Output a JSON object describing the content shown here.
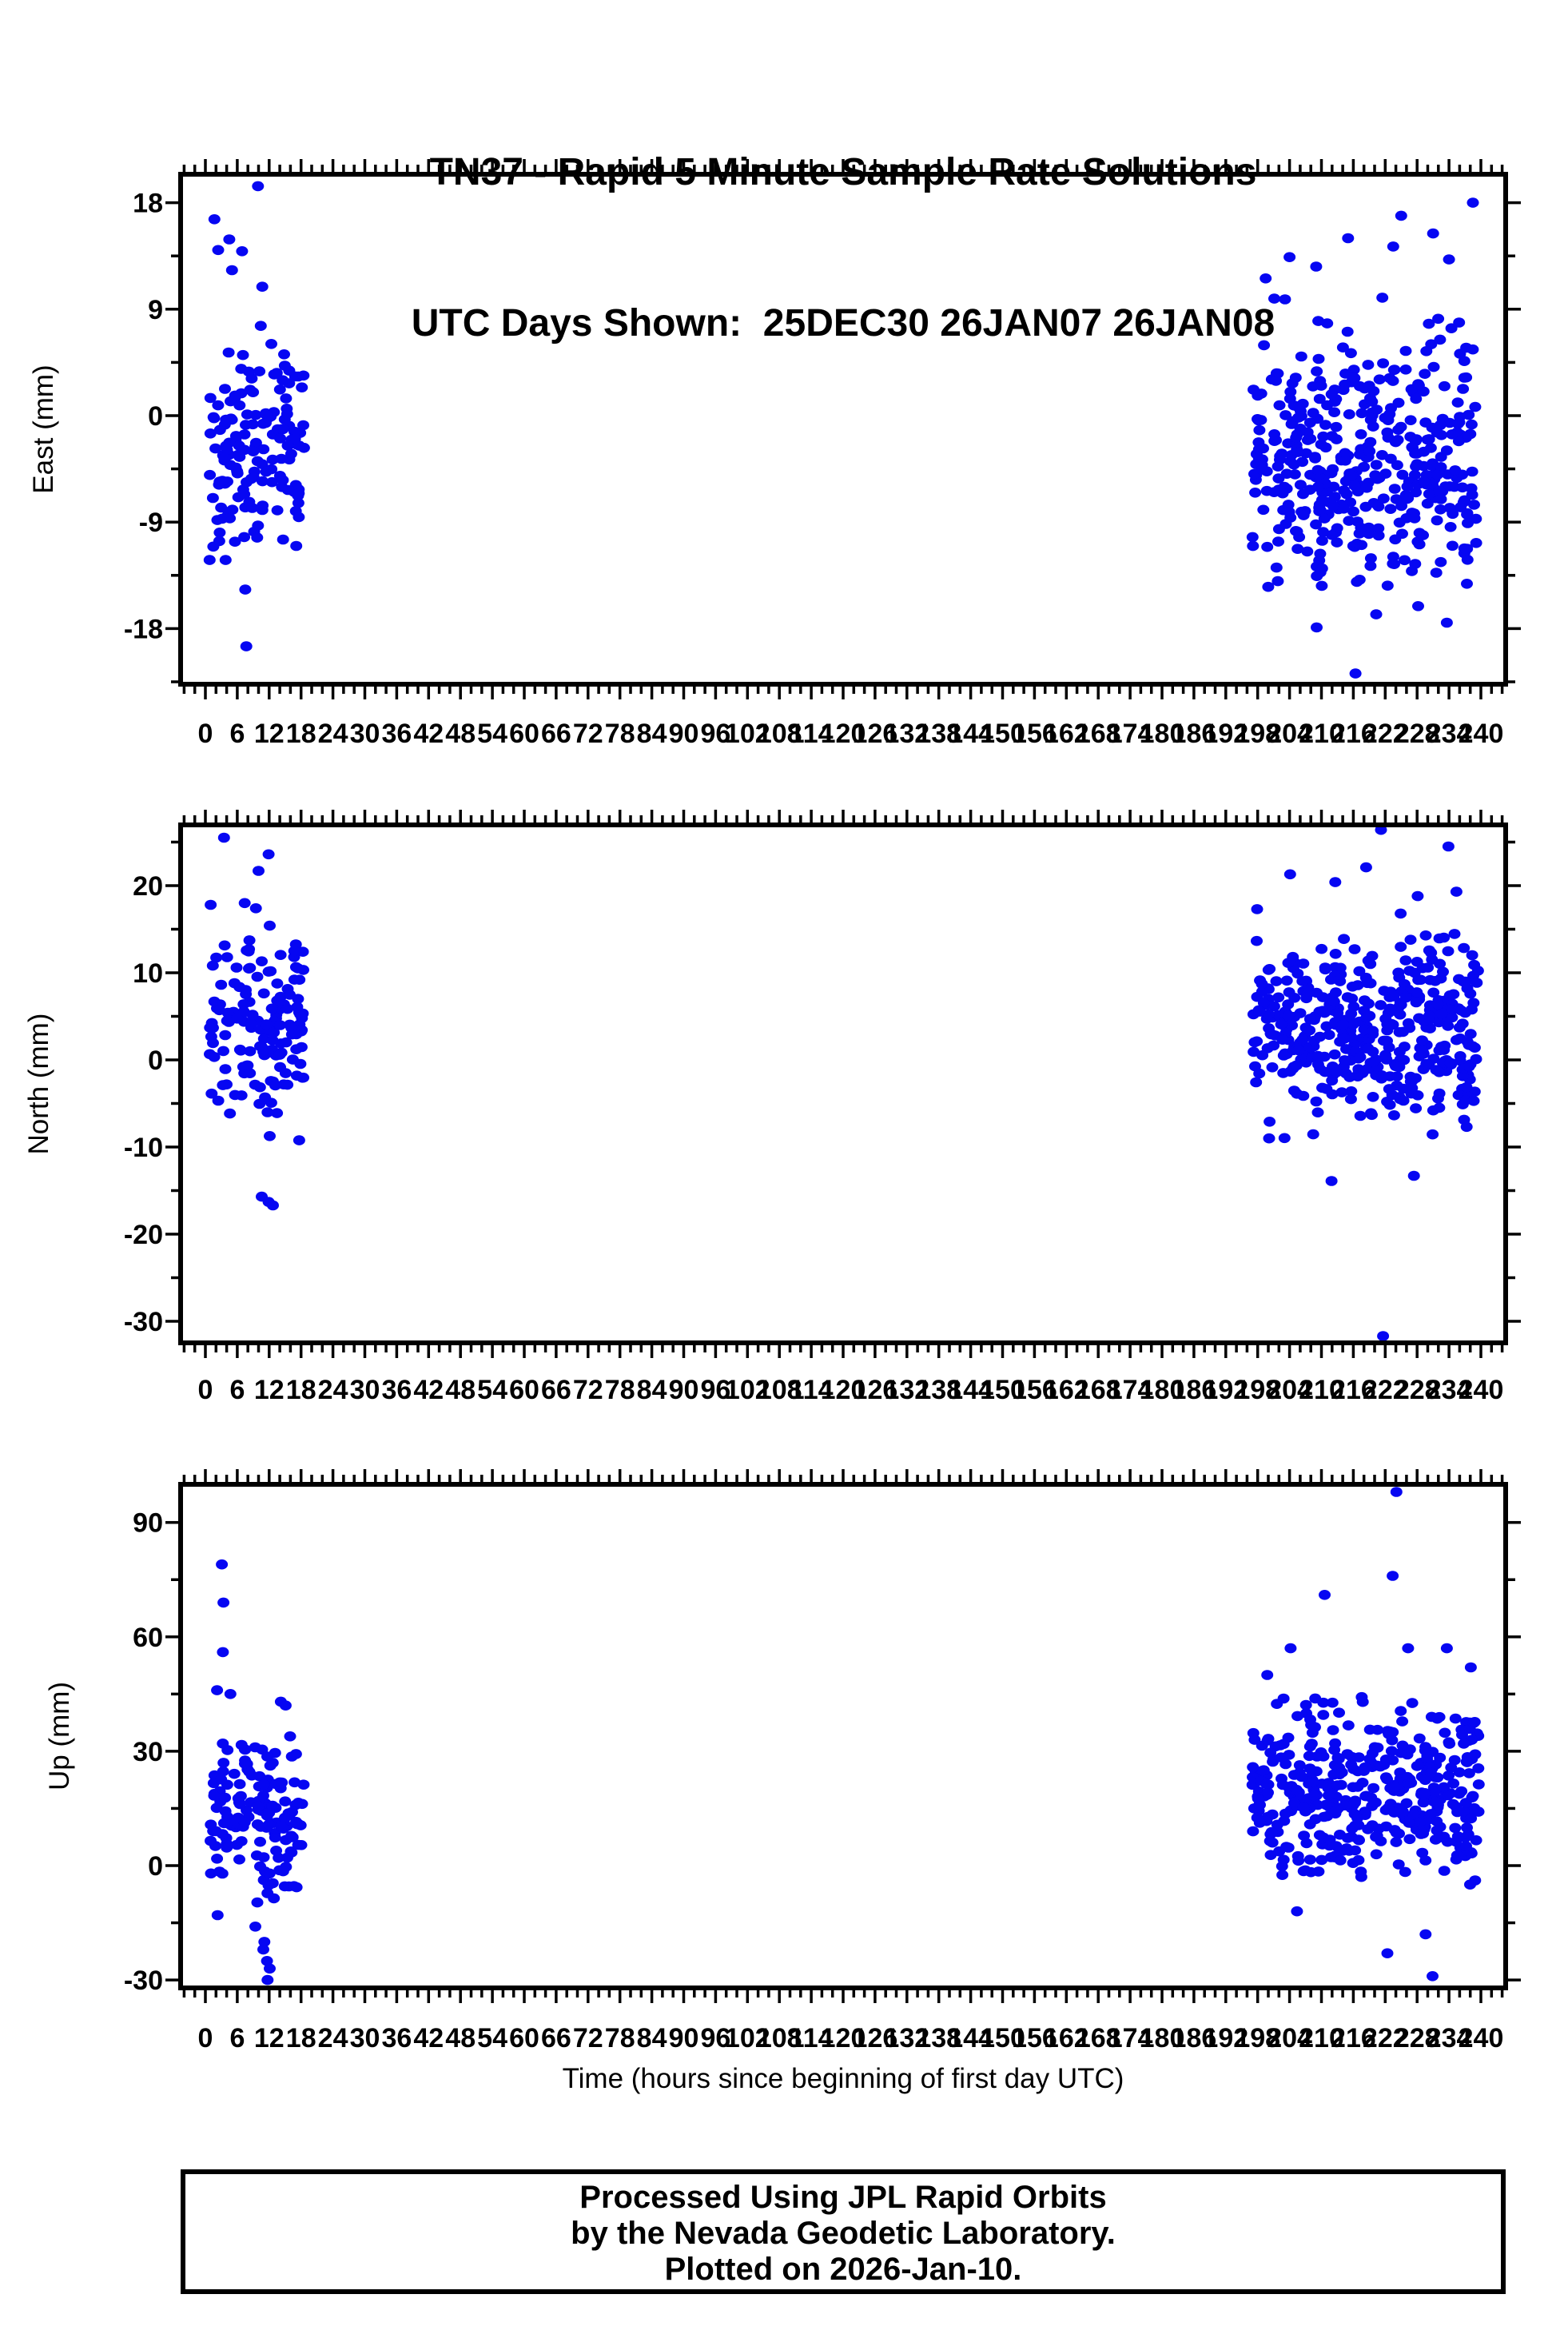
{
  "title": {
    "line1": "TN37 - Rapid 5 Minute Sample Rate Solutions",
    "line2": "UTC Days Shown:  25DEC30 26JAN07 26JAN08"
  },
  "footer": {
    "lines": [
      "Processed Using JPL Rapid Orbits",
      "by the Nevada Geodetic Laboratory.",
      "Plotted on 2026-Jan-10."
    ]
  },
  "chart_data": {
    "type": "scatter",
    "station": "TN37",
    "xlabel": "Time (hours since beginning of first day UTC)",
    "x_axis": {
      "min": 0,
      "max": 240,
      "major_step": 6,
      "minor_step": 2
    },
    "point_color": "#0606f2",
    "frame_color": "#000000",
    "panels": [
      {
        "id": "east",
        "ylabel": "East (mm)",
        "yticks": [
          18,
          9,
          0,
          -9,
          -18
        ],
        "ylim": [
          -22.7,
          20.4
        ],
        "clusters": [
          {
            "t_min": 0.8,
            "t_max": 18.6,
            "count": 150,
            "mean_mm": -2.5,
            "sd_mm": 4.6,
            "clamp": [
              -12.0,
              9.0
            ]
          },
          {
            "t_min": 197.0,
            "t_max": 239.6,
            "count": 420,
            "mean_mm": -4.0,
            "sd_mm": 5.2,
            "clamp": [
              -14.5,
              10.0
            ]
          }
        ],
        "outliers": [
          [
            9.9,
            19.4
          ],
          [
            1.7,
            16.6
          ],
          [
            4.5,
            14.9
          ],
          [
            2.4,
            14.0
          ],
          [
            6.9,
            13.9
          ],
          [
            5.0,
            12.3
          ],
          [
            10.7,
            10.9
          ],
          [
            0.8,
            -12.2
          ],
          [
            3.8,
            -12.2
          ],
          [
            7.5,
            -14.7
          ],
          [
            7.7,
            -19.5
          ],
          [
            238.5,
            18.0
          ],
          [
            225.0,
            16.9
          ],
          [
            231.0,
            15.4
          ],
          [
            215.0,
            15.0
          ],
          [
            223.5,
            14.3
          ],
          [
            204.0,
            13.4
          ],
          [
            234.0,
            13.2
          ],
          [
            209.0,
            12.6
          ],
          [
            199.5,
            11.6
          ],
          [
            216.4,
            -21.8
          ],
          [
            209.1,
            -17.9
          ],
          [
            233.6,
            -17.5
          ],
          [
            220.3,
            -16.8
          ],
          [
            228.2,
            -16.1
          ]
        ]
      },
      {
        "id": "north",
        "ylabel": "North (mm)",
        "yticks": [
          20,
          10,
          0,
          -10,
          -20,
          -30
        ],
        "ylim": [
          -32.5,
          27.0
        ],
        "clusters": [
          {
            "t_min": 0.8,
            "t_max": 18.6,
            "count": 150,
            "mean_mm": 4.0,
            "sd_mm": 5.0,
            "clamp": [
              -11.0,
              14.5
            ]
          },
          {
            "t_min": 197.0,
            "t_max": 239.6,
            "count": 420,
            "mean_mm": 3.0,
            "sd_mm": 5.2,
            "clamp": [
              -9.5,
              15.0
            ]
          }
        ],
        "outliers": [
          [
            3.5,
            25.5
          ],
          [
            11.9,
            23.6
          ],
          [
            10.0,
            21.7
          ],
          [
            1.0,
            17.8
          ],
          [
            7.4,
            18.0
          ],
          [
            9.5,
            17.4
          ],
          [
            12.1,
            15.4
          ],
          [
            10.6,
            -15.7
          ],
          [
            11.9,
            -16.3
          ],
          [
            12.7,
            -16.7
          ],
          [
            221.2,
            26.4
          ],
          [
            233.9,
            24.5
          ],
          [
            218.4,
            22.1
          ],
          [
            204.1,
            21.3
          ],
          [
            212.6,
            20.4
          ],
          [
            235.4,
            19.3
          ],
          [
            228.1,
            18.8
          ],
          [
            197.9,
            17.3
          ],
          [
            224.9,
            16.8
          ],
          [
            221.6,
            -31.7
          ],
          [
            211.9,
            -13.9
          ],
          [
            227.4,
            -13.3
          ]
        ]
      },
      {
        "id": "up",
        "ylabel": "Up (mm)",
        "yticks": [
          90,
          60,
          30,
          0,
          -30
        ],
        "ylim": [
          -32.1,
          100.0
        ],
        "clusters": [
          {
            "t_min": 0.8,
            "t_max": 18.6,
            "count": 150,
            "mean_mm": 13.0,
            "sd_mm": 10.0,
            "clamp": [
              -11.0,
              44.0
            ]
          },
          {
            "t_min": 197.0,
            "t_max": 239.6,
            "count": 420,
            "mean_mm": 20.0,
            "sd_mm": 11.0,
            "clamp": [
              -7.0,
              47.0
            ]
          }
        ],
        "outliers": [
          [
            3.1,
            79.0
          ],
          [
            3.4,
            69.0
          ],
          [
            3.3,
            56.0
          ],
          [
            2.2,
            46.0
          ],
          [
            4.7,
            45.0
          ],
          [
            14.2,
            43.0
          ],
          [
            15.1,
            42.0
          ],
          [
            2.3,
            -13.0
          ],
          [
            9.4,
            -16.0
          ],
          [
            11.1,
            -20.0
          ],
          [
            10.9,
            -22.0
          ],
          [
            11.6,
            -25.0
          ],
          [
            12.1,
            -27.0
          ],
          [
            11.7,
            -30.0
          ],
          [
            224.1,
            98.0
          ],
          [
            223.4,
            76.0
          ],
          [
            210.6,
            71.0
          ],
          [
            204.2,
            57.0
          ],
          [
            226.3,
            57.0
          ],
          [
            233.6,
            57.0
          ],
          [
            238.1,
            52.0
          ],
          [
            199.8,
            50.0
          ],
          [
            205.4,
            -12.0
          ],
          [
            229.6,
            -18.0
          ],
          [
            222.4,
            -23.0
          ],
          [
            230.9,
            -29.0
          ]
        ]
      }
    ]
  }
}
